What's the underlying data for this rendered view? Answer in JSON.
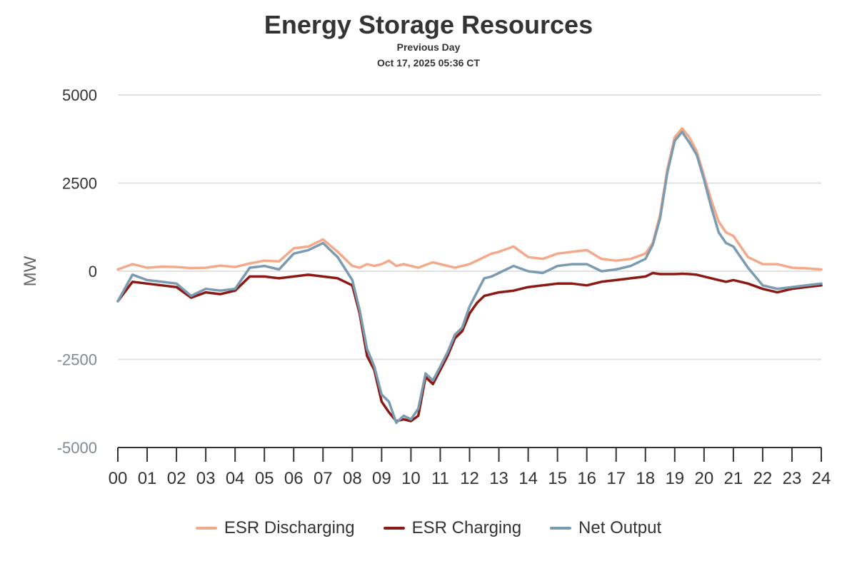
{
  "header": {
    "title": "Energy Storage Resources",
    "subtitle": "Previous Day",
    "timestamp": "Oct 17, 2025 05:36 CT"
  },
  "colors": {
    "discharging": "#f3a98a",
    "charging": "#8b1a14",
    "net": "#7a9bb0",
    "grid": "#e2e2e2",
    "axis": "#333333",
    "negative_label": "#7f8a96"
  },
  "chart_data": {
    "type": "line",
    "title": "Energy Storage Resources",
    "subtitle": "Previous Day",
    "ylabel": "MW",
    "xlabel": "",
    "xlim": [
      0,
      24
    ],
    "ylim": [
      -5000,
      5000
    ],
    "yticks": [
      5000,
      2500,
      0,
      -2500,
      -5000
    ],
    "ytick_labels": [
      "5000",
      "2500",
      "0",
      "-2500",
      "-5000"
    ],
    "xticks": [
      0,
      1,
      2,
      3,
      4,
      5,
      6,
      7,
      8,
      9,
      10,
      11,
      12,
      13,
      14,
      15,
      16,
      17,
      18,
      19,
      20,
      21,
      22,
      23,
      24
    ],
    "xtick_labels": [
      "00",
      "01",
      "02",
      "03",
      "04",
      "05",
      "06",
      "07",
      "08",
      "09",
      "10",
      "11",
      "12",
      "13",
      "14",
      "15",
      "16",
      "17",
      "18",
      "19",
      "20",
      "21",
      "22",
      "23",
      "24"
    ],
    "grid": true,
    "legend_position": "bottom-center",
    "x": [
      0,
      0.5,
      1,
      1.5,
      2,
      2.5,
      3,
      3.5,
      4,
      4.5,
      5,
      5.5,
      6,
      6.5,
      7,
      7.5,
      8,
      8.25,
      8.5,
      8.75,
      9,
      9.25,
      9.5,
      9.75,
      10,
      10.25,
      10.5,
      10.75,
      11,
      11.25,
      11.5,
      11.75,
      12,
      12.25,
      12.5,
      12.75,
      13,
      13.5,
      14,
      14.5,
      15,
      15.5,
      16,
      16.5,
      17,
      17.5,
      18,
      18.25,
      18.5,
      18.75,
      19,
      19.25,
      19.5,
      19.75,
      20,
      20.25,
      20.5,
      20.75,
      21,
      21.25,
      21.5,
      22,
      22.5,
      23,
      23.5,
      24
    ],
    "series": [
      {
        "name": "ESR Discharging",
        "values": [
          50,
          200,
          100,
          130,
          120,
          90,
          100,
          160,
          120,
          220,
          300,
          280,
          650,
          700,
          900,
          550,
          150,
          100,
          200,
          150,
          200,
          300,
          150,
          200,
          150,
          100,
          180,
          250,
          200,
          150,
          100,
          150,
          200,
          300,
          400,
          500,
          550,
          700,
          400,
          350,
          500,
          550,
          600,
          350,
          300,
          350,
          500,
          800,
          1600,
          2900,
          3800,
          4050,
          3800,
          3400,
          2700,
          2000,
          1400,
          1100,
          1000,
          700,
          400,
          200,
          200,
          100,
          80,
          50
        ],
        "color_key": "discharging"
      },
      {
        "name": "ESR Charging",
        "values": [
          -850,
          -300,
          -350,
          -400,
          -450,
          -750,
          -600,
          -650,
          -550,
          -150,
          -150,
          -200,
          -150,
          -100,
          -150,
          -200,
          -400,
          -1200,
          -2400,
          -2800,
          -3700,
          -4000,
          -4250,
          -4200,
          -4250,
          -4100,
          -3000,
          -3200,
          -2800,
          -2400,
          -1900,
          -1700,
          -1200,
          -900,
          -700,
          -650,
          -600,
          -550,
          -450,
          -400,
          -350,
          -350,
          -400,
          -300,
          -250,
          -200,
          -150,
          -50,
          -80,
          -80,
          -80,
          -70,
          -80,
          -100,
          -150,
          -200,
          -250,
          -300,
          -250,
          -300,
          -350,
          -500,
          -600,
          -500,
          -450,
          -400
        ],
        "color_key": "charging"
      },
      {
        "name": "Net Output",
        "values": [
          -850,
          -100,
          -250,
          -300,
          -350,
          -700,
          -500,
          -550,
          -500,
          100,
          150,
          50,
          500,
          600,
          800,
          400,
          -250,
          -1100,
          -2200,
          -2700,
          -3500,
          -3700,
          -4300,
          -4100,
          -4200,
          -3900,
          -2900,
          -3100,
          -2700,
          -2300,
          -1800,
          -1600,
          -1000,
          -600,
          -200,
          -150,
          -50,
          150,
          0,
          -50,
          150,
          200,
          200,
          0,
          50,
          150,
          350,
          750,
          1500,
          2800,
          3700,
          3950,
          3650,
          3300,
          2600,
          1800,
          1100,
          800,
          700,
          400,
          100,
          -400,
          -500,
          -450,
          -400,
          -350
        ],
        "color_key": "net"
      }
    ]
  }
}
